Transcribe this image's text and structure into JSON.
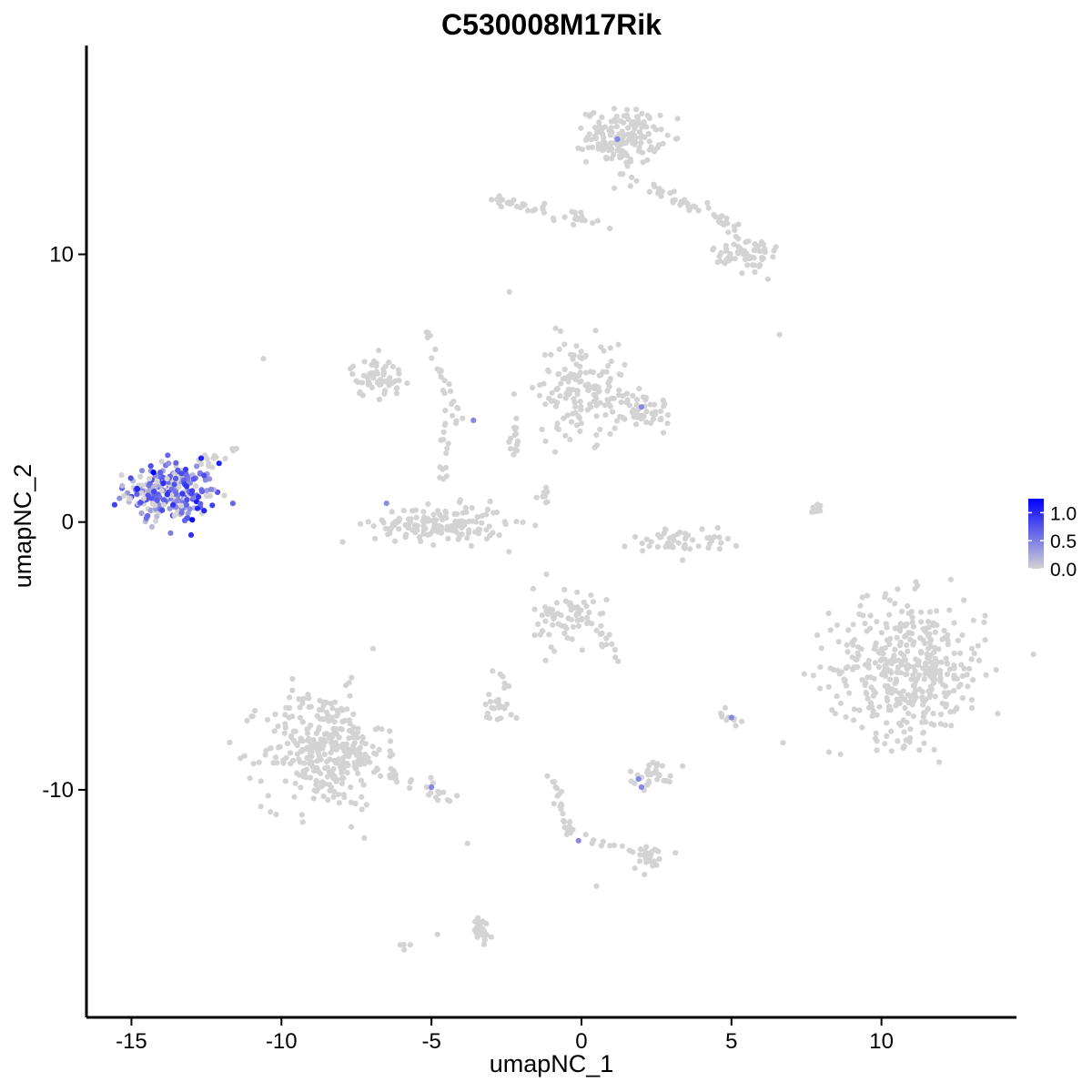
{
  "chart_data": {
    "type": "scatter",
    "title": "C530008M17Rik",
    "xlabel": "umapNC_1",
    "ylabel": "umapNC_2",
    "xlim": [
      -16.5,
      14.5
    ],
    "ylim": [
      -18.5,
      17.8
    ],
    "x_ticks": [
      -15,
      -10,
      -5,
      0,
      5,
      10
    ],
    "x_tick_labels": [
      "-15",
      "-10",
      "-5",
      "0",
      "5",
      "10"
    ],
    "y_ticks": [
      10,
      0,
      -10
    ],
    "y_tick_labels": [
      "10",
      "0",
      "-10"
    ],
    "grid": false,
    "legend": {
      "placement": "right",
      "type": "colorbar",
      "ticks": [
        1.0,
        0.5,
        0.0
      ],
      "tick_labels": [
        "1.0",
        "0.5",
        "0.0"
      ],
      "range": [
        0,
        1.25
      ]
    },
    "colors": {
      "low": "#d3d3d3",
      "high": "#0000ff"
    },
    "clusters": [
      {
        "cx": -13.7,
        "cy": 1.1,
        "sx": 0.75,
        "sy": 0.55,
        "n": 260,
        "expr": "high"
      },
      {
        "cx": 1.4,
        "cy": 14.4,
        "sx": 0.6,
        "sy": 0.5,
        "n": 160
      },
      {
        "cx": -8.6,
        "cy": -8.5,
        "sx": 1.0,
        "sy": 1.1,
        "n": 320
      },
      {
        "cx": 10.9,
        "cy": -5.5,
        "sx": 1.3,
        "sy": 1.3,
        "n": 420
      },
      {
        "cx": -4.7,
        "cy": -0.1,
        "sx": 1.1,
        "sy": 0.35,
        "n": 160
      },
      {
        "cx": 0.0,
        "cy": 5.0,
        "sx": 0.75,
        "sy": 0.9,
        "n": 150
      },
      {
        "cx": 2.0,
        "cy": 4.2,
        "sx": 0.5,
        "sy": 0.35,
        "n": 50
      },
      {
        "cx": -6.8,
        "cy": 5.4,
        "sx": 0.45,
        "sy": 0.35,
        "n": 60
      },
      {
        "cx": 5.5,
        "cy": 10.0,
        "sx": 0.55,
        "sy": 0.35,
        "n": 50
      },
      {
        "cx": -0.6,
        "cy": -3.6,
        "sx": 0.5,
        "sy": 0.6,
        "n": 60
      },
      {
        "cx": 3.3,
        "cy": -0.7,
        "sx": 0.8,
        "sy": 0.25,
        "n": 50
      },
      {
        "cx": 2.4,
        "cy": -9.4,
        "sx": 0.4,
        "sy": 0.25,
        "n": 30
      },
      {
        "cx": -2.7,
        "cy": -6.9,
        "sx": 0.3,
        "sy": 0.25,
        "n": 20
      },
      {
        "cx": -3.4,
        "cy": -15.3,
        "sx": 0.2,
        "sy": 0.3,
        "n": 25
      },
      {
        "cx": 2.3,
        "cy": -12.5,
        "sx": 0.3,
        "sy": 0.25,
        "n": 20
      }
    ],
    "trails": [
      {
        "x1": -3.0,
        "y1": 12.1,
        "x2": 0.8,
        "y2": 11.1,
        "n": 40
      },
      {
        "x1": 1.3,
        "y1": 13.0,
        "x2": 5.3,
        "y2": 11.0,
        "n": 40
      },
      {
        "x1": 4.2,
        "y1": 11.8,
        "x2": 6.0,
        "y2": 9.5,
        "n": 25
      },
      {
        "x1": -5.2,
        "y1": 7.4,
        "x2": -4.2,
        "y2": 3.7,
        "n": 25
      },
      {
        "x1": -4.6,
        "y1": 3.9,
        "x2": -4.6,
        "y2": 1.5,
        "n": 15
      },
      {
        "x1": -2.2,
        "y1": 3.9,
        "x2": -2.2,
        "y2": 2.4,
        "n": 15
      },
      {
        "x1": -8.0,
        "y1": -8.6,
        "x2": -4.0,
        "y2": -10.5,
        "n": 50
      },
      {
        "x1": -1.0,
        "y1": -9.5,
        "x2": -0.3,
        "y2": -12.0,
        "n": 25
      },
      {
        "x1": 0.2,
        "y1": -11.8,
        "x2": 2.4,
        "y2": -12.6,
        "n": 15
      },
      {
        "x1": 8.1,
        "y1": 0.9,
        "x2": 7.8,
        "y2": 0.2,
        "n": 8
      },
      {
        "x1": -13.0,
        "y1": 2.0,
        "x2": -11.5,
        "y2": 2.8,
        "n": 15
      },
      {
        "x1": -0.3,
        "y1": -2.8,
        "x2": 1.2,
        "y2": -5.3,
        "n": 25
      },
      {
        "x1": -1.5,
        "y1": 1.3,
        "x2": -1.0,
        "y2": 0.7,
        "n": 8
      },
      {
        "x1": -3.0,
        "y1": -4.8,
        "x2": -2.6,
        "y2": -6.4,
        "n": 6
      },
      {
        "x1": 4.6,
        "y1": -7.0,
        "x2": 5.2,
        "y2": -7.6,
        "n": 10
      },
      {
        "x1": -6.2,
        "y1": -16.0,
        "x2": -5.8,
        "y2": -15.8,
        "n": 4
      }
    ],
    "singletons": [
      {
        "x": -10.6,
        "y": 6.1
      },
      {
        "x": 6.6,
        "y": 7.0
      },
      {
        "x": -2.4,
        "y": 8.6
      },
      {
        "x": -4.8,
        "y": -15.4
      },
      {
        "x": -3.8,
        "y": -12.0
      },
      {
        "x": 0.5,
        "y": -13.6
      }
    ],
    "highlights": [
      {
        "x": 1.2,
        "y": 14.3,
        "v": 0.45
      },
      {
        "x": 2.0,
        "y": 4.3,
        "v": 0.45
      },
      {
        "x": -3.6,
        "y": 3.8,
        "v": 0.45
      },
      {
        "x": -6.5,
        "y": 0.7,
        "v": 0.4
      },
      {
        "x": 5.0,
        "y": -7.3,
        "v": 0.45
      },
      {
        "x": 1.9,
        "y": -9.6,
        "v": 0.45
      },
      {
        "x": 2.0,
        "y": -9.9,
        "v": 0.45
      },
      {
        "x": -5.0,
        "y": -9.9,
        "v": 0.45
      },
      {
        "x": -0.1,
        "y": -11.9,
        "v": 0.45
      }
    ]
  }
}
